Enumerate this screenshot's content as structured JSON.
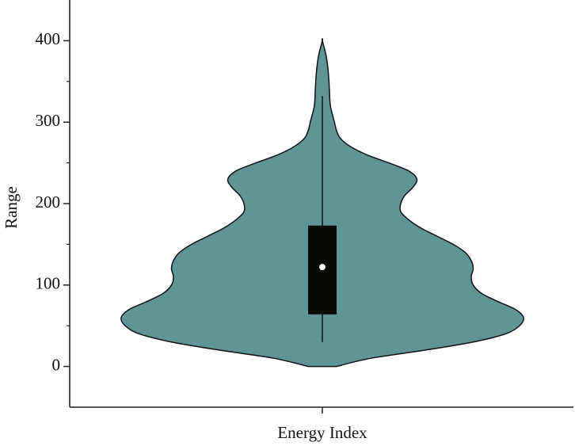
{
  "chart_data": {
    "type": "violin",
    "categories": [
      "Energy Index"
    ],
    "y_label": "Range",
    "ylim": [
      -50,
      450
    ],
    "yticks": [
      0,
      100,
      200,
      300,
      400
    ],
    "minor_yticks": [
      50,
      150,
      250,
      350
    ],
    "color": "#5f9595",
    "violin": {
      "y": [
        0,
        10,
        20,
        30,
        40,
        50,
        60,
        70,
        80,
        90,
        100,
        110,
        120,
        130,
        140,
        150,
        160,
        170,
        180,
        190,
        200,
        210,
        220,
        230,
        240,
        250,
        260,
        270,
        280,
        290,
        300,
        320,
        340,
        360,
        380,
        400
      ],
      "density": [
        0.07,
        0.24,
        0.51,
        0.75,
        0.91,
        0.98,
        1.0,
        0.96,
        0.87,
        0.79,
        0.75,
        0.74,
        0.75,
        0.74,
        0.71,
        0.65,
        0.57,
        0.49,
        0.43,
        0.39,
        0.39,
        0.41,
        0.45,
        0.47,
        0.43,
        0.33,
        0.22,
        0.14,
        0.09,
        0.07,
        0.06,
        0.04,
        0.035,
        0.03,
        0.02,
        0.0
      ]
    },
    "box": {
      "whisker_low": 30,
      "q1": 64,
      "median": 122,
      "q3": 173,
      "whisker_high": 332
    }
  }
}
